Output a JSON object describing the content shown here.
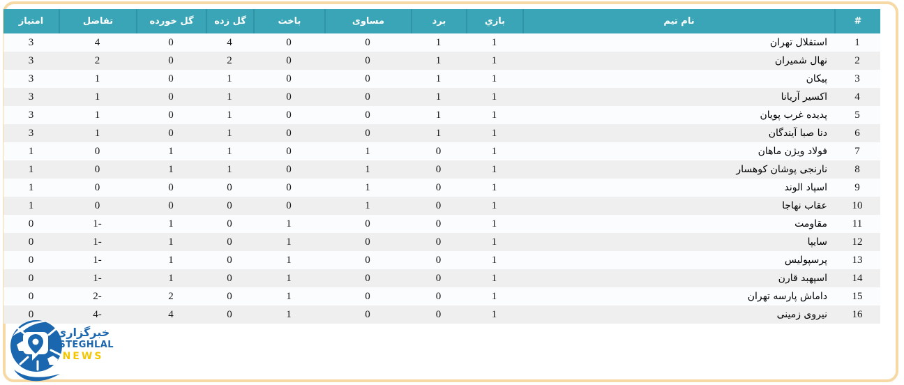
{
  "colors": {
    "header_bg": "#3aa5b6",
    "header_separator": "#2f94a6",
    "row_odd": "#fafcfe",
    "row_even": "#efefef",
    "card_border": "#f6d9a4",
    "logo_blue": "#1b67af",
    "logo_yellow": "#f3c600"
  },
  "table": {
    "columns": [
      {
        "key": "rank",
        "label": "#"
      },
      {
        "key": "team",
        "label": "نام تیم"
      },
      {
        "key": "played",
        "label": "بازي"
      },
      {
        "key": "won",
        "label": "برد"
      },
      {
        "key": "drawn",
        "label": "مساوی"
      },
      {
        "key": "lost",
        "label": "باخت"
      },
      {
        "key": "goals_for",
        "label": "گل زده"
      },
      {
        "key": "goals_against",
        "label": "گل خورده"
      },
      {
        "key": "goal_diff",
        "label": "تفاضل"
      },
      {
        "key": "points",
        "label": "امتیاز"
      }
    ],
    "rows": [
      {
        "rank": "1",
        "team": "استقلال تهران",
        "played": "1",
        "won": "1",
        "drawn": "0",
        "lost": "0",
        "goals_for": "4",
        "goals_against": "0",
        "goal_diff": "4",
        "points": "3"
      },
      {
        "rank": "2",
        "team": "نهال شمیران",
        "played": "1",
        "won": "1",
        "drawn": "0",
        "lost": "0",
        "goals_for": "2",
        "goals_against": "0",
        "goal_diff": "2",
        "points": "3"
      },
      {
        "rank": "3",
        "team": "پیکان",
        "played": "1",
        "won": "1",
        "drawn": "0",
        "lost": "0",
        "goals_for": "1",
        "goals_against": "0",
        "goal_diff": "1",
        "points": "3"
      },
      {
        "rank": "4",
        "team": "اکسیر آریانا",
        "played": "1",
        "won": "1",
        "drawn": "0",
        "lost": "0",
        "goals_for": "1",
        "goals_against": "0",
        "goal_diff": "1",
        "points": "3"
      },
      {
        "rank": "5",
        "team": "پدیده غرب پویان",
        "played": "1",
        "won": "1",
        "drawn": "0",
        "lost": "0",
        "goals_for": "1",
        "goals_against": "0",
        "goal_diff": "1",
        "points": "3"
      },
      {
        "rank": "6",
        "team": "دنا صبا آیندگان",
        "played": "1",
        "won": "1",
        "drawn": "0",
        "lost": "0",
        "goals_for": "1",
        "goals_against": "0",
        "goal_diff": "1",
        "points": "3"
      },
      {
        "rank": "7",
        "team": "فولاد ویژن ماهان",
        "played": "1",
        "won": "0",
        "drawn": "1",
        "lost": "0",
        "goals_for": "1",
        "goals_against": "1",
        "goal_diff": "0",
        "points": "1"
      },
      {
        "rank": "8",
        "team": "نارنجی پوشان کوهسار",
        "played": "1",
        "won": "0",
        "drawn": "1",
        "lost": "0",
        "goals_for": "1",
        "goals_against": "1",
        "goal_diff": "0",
        "points": "1"
      },
      {
        "rank": "9",
        "team": "اسپاد الوند",
        "played": "1",
        "won": "0",
        "drawn": "1",
        "lost": "0",
        "goals_for": "0",
        "goals_against": "0",
        "goal_diff": "0",
        "points": "1"
      },
      {
        "rank": "10",
        "team": "عقاب نهاجا",
        "played": "1",
        "won": "0",
        "drawn": "1",
        "lost": "0",
        "goals_for": "0",
        "goals_against": "0",
        "goal_diff": "0",
        "points": "1"
      },
      {
        "rank": "11",
        "team": "مقاومت",
        "played": "1",
        "won": "0",
        "drawn": "0",
        "lost": "1",
        "goals_for": "0",
        "goals_against": "1",
        "goal_diff": "1-",
        "points": "0"
      },
      {
        "rank": "12",
        "team": "سایپا",
        "played": "1",
        "won": "0",
        "drawn": "0",
        "lost": "1",
        "goals_for": "0",
        "goals_against": "1",
        "goal_diff": "1-",
        "points": "0"
      },
      {
        "rank": "13",
        "team": "پرسپولیس",
        "played": "1",
        "won": "0",
        "drawn": "0",
        "lost": "1",
        "goals_for": "0",
        "goals_against": "1",
        "goal_diff": "1-",
        "points": "0"
      },
      {
        "rank": "14",
        "team": "اسپهبد قارن",
        "played": "1",
        "won": "0",
        "drawn": "0",
        "lost": "1",
        "goals_for": "0",
        "goals_against": "1",
        "goal_diff": "1-",
        "points": "0"
      },
      {
        "rank": "15",
        "team": "داماش پارسه تهران",
        "played": "1",
        "won": "0",
        "drawn": "0",
        "lost": "1",
        "goals_for": "0",
        "goals_against": "2",
        "goal_diff": "2-",
        "points": "0"
      },
      {
        "rank": "16",
        "team": "نیروی زمینی",
        "played": "1",
        "won": "0",
        "drawn": "0",
        "lost": "1",
        "goals_for": "0",
        "goals_against": "4",
        "goal_diff": "4-",
        "points": "0"
      }
    ]
  },
  "logo": {
    "agency_persian": "خبرگزاری",
    "title": "ESTEGHLAL",
    "subtitle": "NEWS"
  }
}
